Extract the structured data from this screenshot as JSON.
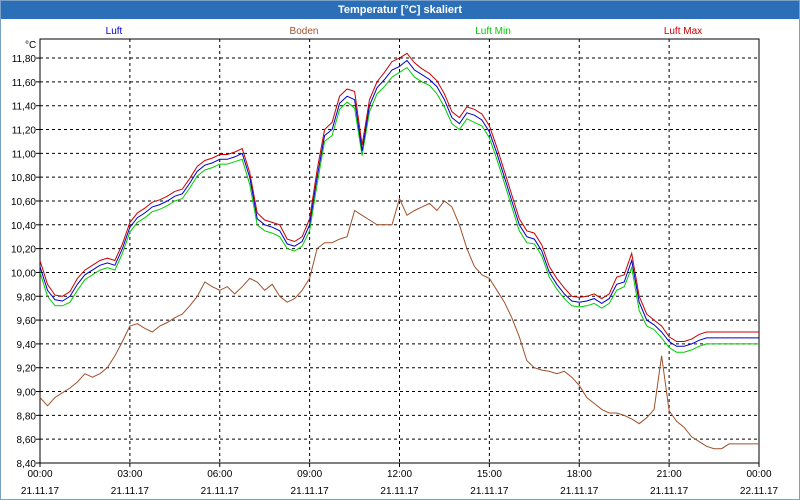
{
  "window": {
    "title": "Temperatur [°C] skaliert"
  },
  "chart_data": {
    "type": "line",
    "title": "Temperatur [°C] skaliert",
    "ylabel": "°C",
    "ylim": [
      8.4,
      11.96
    ],
    "y_ticks": [
      "8,40",
      "8,60",
      "8,80",
      "9,00",
      "9,20",
      "9,40",
      "9,60",
      "9,80",
      "10,00",
      "10,20",
      "10,40",
      "10,60",
      "10,80",
      "11,00",
      "11,20",
      "11,40",
      "11,60",
      "11,80"
    ],
    "y_tick_values": [
      8.4,
      8.6,
      8.8,
      9.0,
      9.2,
      9.4,
      9.6,
      9.8,
      10.0,
      10.2,
      10.4,
      10.6,
      10.8,
      11.0,
      11.2,
      11.4,
      11.6,
      11.8
    ],
    "xlim_hours": [
      0,
      24
    ],
    "x_ticks": [
      {
        "time": "00:00",
        "date": "21.11.17",
        "hour": 0
      },
      {
        "time": "03:00",
        "date": "21.11.17",
        "hour": 3
      },
      {
        "time": "06:00",
        "date": "21.11.17",
        "hour": 6
      },
      {
        "time": "09:00",
        "date": "21.11.17",
        "hour": 9
      },
      {
        "time": "12:00",
        "date": "21.11.17",
        "hour": 12
      },
      {
        "time": "15:00",
        "date": "21.11.17",
        "hour": 15
      },
      {
        "time": "18:00",
        "date": "21.11.17",
        "hour": 18
      },
      {
        "time": "21:00",
        "date": "21.11.17",
        "hour": 21
      },
      {
        "time": "00:00",
        "date": "22.11.17",
        "hour": 24
      }
    ],
    "grid": true,
    "legend_position": "top",
    "x_hours": [
      0,
      0.25,
      0.5,
      0.75,
      1,
      1.25,
      1.5,
      1.75,
      2,
      2.25,
      2.5,
      2.75,
      3,
      3.25,
      3.5,
      3.75,
      4,
      4.25,
      4.5,
      4.75,
      5,
      5.25,
      5.5,
      5.75,
      6,
      6.25,
      6.5,
      6.75,
      7,
      7.25,
      7.5,
      7.75,
      8,
      8.25,
      8.5,
      8.75,
      9,
      9.25,
      9.5,
      9.75,
      10,
      10.25,
      10.5,
      10.75,
      11,
      11.25,
      11.5,
      11.75,
      12,
      12.25,
      12.5,
      12.75,
      13,
      13.25,
      13.5,
      13.75,
      14,
      14.25,
      14.5,
      14.75,
      15,
      15.25,
      15.5,
      15.75,
      16,
      16.25,
      16.5,
      16.75,
      17,
      17.25,
      17.5,
      17.75,
      18,
      18.25,
      18.5,
      18.75,
      19,
      19.25,
      19.5,
      19.75,
      20,
      20.25,
      20.5,
      20.75,
      21,
      21.25,
      21.5,
      21.75,
      22,
      22.25,
      22.5,
      22.75,
      23,
      23.25,
      23.5,
      23.75,
      24
    ],
    "series": [
      {
        "name": "Luft",
        "color": "#0000cc",
        "values": [
          10.05,
          9.85,
          9.77,
          9.76,
          9.8,
          9.9,
          9.98,
          10.02,
          10.06,
          10.08,
          10.06,
          10.2,
          10.38,
          10.46,
          10.5,
          10.55,
          10.57,
          10.6,
          10.64,
          10.66,
          10.75,
          10.85,
          10.9,
          10.92,
          10.95,
          10.95,
          10.97,
          11.0,
          10.8,
          10.45,
          10.4,
          10.38,
          10.35,
          10.24,
          10.22,
          10.26,
          10.4,
          10.8,
          11.15,
          11.2,
          11.42,
          11.48,
          11.45,
          11.02,
          11.4,
          11.55,
          11.62,
          11.7,
          11.73,
          11.78,
          11.7,
          11.66,
          11.62,
          11.56,
          11.45,
          11.3,
          11.25,
          11.34,
          11.32,
          11.28,
          11.18,
          11.0,
          10.8,
          10.6,
          10.4,
          10.3,
          10.28,
          10.18,
          10.0,
          9.9,
          9.82,
          9.76,
          9.75,
          9.76,
          9.78,
          9.74,
          9.78,
          9.9,
          9.92,
          10.1,
          9.75,
          9.6,
          9.56,
          9.5,
          9.42,
          9.38,
          9.38,
          9.4,
          9.43,
          9.45,
          9.45,
          9.45,
          9.45,
          9.45,
          9.45,
          9.45,
          9.45
        ]
      },
      {
        "name": "Boden",
        "color": "#a0522d",
        "values": [
          8.95,
          8.88,
          8.95,
          8.99,
          9.03,
          9.08,
          9.15,
          9.12,
          9.15,
          9.2,
          9.3,
          9.42,
          9.55,
          9.57,
          9.53,
          9.5,
          9.55,
          9.58,
          9.62,
          9.65,
          9.72,
          9.8,
          9.92,
          9.88,
          9.85,
          9.88,
          9.82,
          9.88,
          9.95,
          9.92,
          9.85,
          9.9,
          9.8,
          9.75,
          9.78,
          9.85,
          9.95,
          10.2,
          10.25,
          10.25,
          10.28,
          10.3,
          10.52,
          10.48,
          10.44,
          10.4,
          10.4,
          10.4,
          10.62,
          10.48,
          10.52,
          10.55,
          10.58,
          10.52,
          10.6,
          10.55,
          10.4,
          10.2,
          10.05,
          9.98,
          9.95,
          9.85,
          9.75,
          9.62,
          9.46,
          9.26,
          9.2,
          9.18,
          9.17,
          9.15,
          9.17,
          9.12,
          9.05,
          8.95,
          8.9,
          8.85,
          8.82,
          8.82,
          8.8,
          8.77,
          8.73,
          8.78,
          8.85,
          9.3,
          8.84,
          8.75,
          8.7,
          8.62,
          8.58,
          8.54,
          8.52,
          8.52,
          8.56,
          8.56,
          8.56,
          8.56,
          8.56
        ]
      },
      {
        "name": "Luft Min",
        "color": "#00cc00",
        "values": [
          10.0,
          9.8,
          9.72,
          9.72,
          9.75,
          9.85,
          9.94,
          9.98,
          10.02,
          10.04,
          10.02,
          10.16,
          10.34,
          10.42,
          10.46,
          10.51,
          10.53,
          10.56,
          10.6,
          10.62,
          10.71,
          10.81,
          10.86,
          10.88,
          10.91,
          10.91,
          10.93,
          10.95,
          10.74,
          10.4,
          10.35,
          10.33,
          10.3,
          10.2,
          10.18,
          10.22,
          10.35,
          10.74,
          11.1,
          11.15,
          11.37,
          11.43,
          11.38,
          10.98,
          11.35,
          11.5,
          11.56,
          11.64,
          11.68,
          11.72,
          11.64,
          11.6,
          11.57,
          11.5,
          11.39,
          11.25,
          11.2,
          11.29,
          11.26,
          11.23,
          11.13,
          10.95,
          10.75,
          10.55,
          10.35,
          10.25,
          10.24,
          10.14,
          9.96,
          9.86,
          9.78,
          9.72,
          9.71,
          9.72,
          9.74,
          9.7,
          9.74,
          9.85,
          9.88,
          10.04,
          9.68,
          9.55,
          9.52,
          9.45,
          9.37,
          9.33,
          9.33,
          9.35,
          9.38,
          9.4,
          9.4,
          9.4,
          9.4,
          9.4,
          9.4,
          9.4,
          9.4
        ]
      },
      {
        "name": "Luft Max",
        "color": "#cc0000",
        "values": [
          10.1,
          9.9,
          9.81,
          9.8,
          9.84,
          9.95,
          10.02,
          10.06,
          10.1,
          10.12,
          10.1,
          10.24,
          10.42,
          10.5,
          10.54,
          10.59,
          10.61,
          10.64,
          10.68,
          10.7,
          10.79,
          10.89,
          10.94,
          10.96,
          10.99,
          10.99,
          11.01,
          11.04,
          10.84,
          10.5,
          10.44,
          10.42,
          10.4,
          10.28,
          10.26,
          10.3,
          10.45,
          10.86,
          11.2,
          11.26,
          11.48,
          11.54,
          11.52,
          11.07,
          11.45,
          11.6,
          11.68,
          11.77,
          11.8,
          11.84,
          11.76,
          11.71,
          11.67,
          11.61,
          11.5,
          11.35,
          11.3,
          11.39,
          11.37,
          11.33,
          11.23,
          11.05,
          10.85,
          10.65,
          10.45,
          10.35,
          10.33,
          10.23,
          10.05,
          9.95,
          9.87,
          9.8,
          9.79,
          9.8,
          9.82,
          9.78,
          9.82,
          9.96,
          9.98,
          10.16,
          9.8,
          9.65,
          9.6,
          9.55,
          9.46,
          9.42,
          9.42,
          9.44,
          9.48,
          9.5,
          9.5,
          9.5,
          9.5,
          9.5,
          9.5,
          9.5,
          9.5
        ]
      }
    ]
  }
}
